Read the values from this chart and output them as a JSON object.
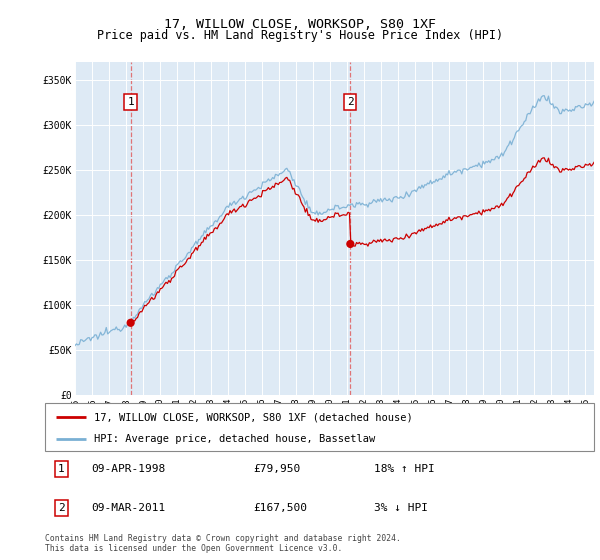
{
  "title": "17, WILLOW CLOSE, WORKSOP, S80 1XF",
  "subtitle": "Price paid vs. HM Land Registry's House Price Index (HPI)",
  "xlim_start": 1995.0,
  "xlim_end": 2025.5,
  "ylim": [
    0,
    370000
  ],
  "plot_bg": "#deeaf5",
  "legend_entry1": "17, WILLOW CLOSE, WORKSOP, S80 1XF (detached house)",
  "legend_entry2": "HPI: Average price, detached house, Bassetlaw",
  "sale1_date": 1998.27,
  "sale1_price": 79950,
  "sale1_label": "1",
  "sale2_date": 2011.18,
  "sale2_price": 167500,
  "sale2_label": "2",
  "footer": "Contains HM Land Registry data © Crown copyright and database right 2024.\nThis data is licensed under the Open Government Licence v3.0.",
  "hpi_color": "#7ab0d4",
  "price_color": "#cc0000",
  "sale_dot_color": "#cc0000",
  "vline_color": "#e06060",
  "grid_color": "#ffffff",
  "yticks": [
    0,
    50000,
    100000,
    150000,
    200000,
    250000,
    300000,
    350000
  ],
  "ytick_labels": [
    "£0",
    "£50K",
    "£100K",
    "£150K",
    "£200K",
    "£250K",
    "£300K",
    "£350K"
  ],
  "title_fontsize": 9.5,
  "subtitle_fontsize": 8.5,
  "tick_fontsize": 7,
  "legend_fontsize": 7.5
}
